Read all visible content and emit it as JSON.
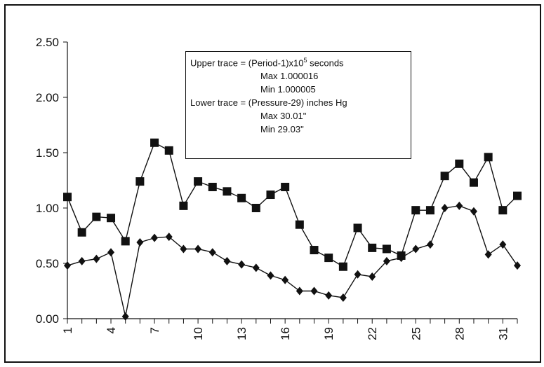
{
  "chart_data": {
    "type": "line",
    "x": [
      "1",
      "2",
      "3",
      "4",
      "5",
      "6",
      "7",
      "8",
      "9",
      "10",
      "11",
      "12",
      "13",
      "14",
      "15",
      "16",
      "17",
      "18",
      "19",
      "20",
      "21",
      "22",
      "23",
      "24",
      "25",
      "26",
      "27",
      "28",
      "29",
      "30",
      "31",
      "32"
    ],
    "x_tick_labels": [
      "1",
      "4",
      "7",
      "10",
      "13",
      "16",
      "19",
      "22",
      "25",
      "28",
      "31"
    ],
    "y_tick_labels": [
      "0.00",
      "0.50",
      "1.00",
      "1.50",
      "2.00",
      "2.50"
    ],
    "ylim": [
      0,
      2.5
    ],
    "grid": false,
    "series": [
      {
        "marker": "square",
        "values": [
          1.1,
          0.78,
          0.92,
          0.91,
          0.7,
          1.24,
          1.59,
          1.52,
          1.02,
          1.24,
          1.19,
          1.15,
          1.09,
          1.0,
          1.12,
          1.19,
          0.85,
          0.62,
          0.55,
          0.47,
          0.82,
          0.64,
          0.63,
          0.57,
          0.98,
          0.98,
          1.29,
          1.4,
          1.23,
          1.46,
          0.98,
          1.11
        ]
      },
      {
        "marker": "diamond",
        "values": [
          0.48,
          0.52,
          0.54,
          0.6,
          0.02,
          0.69,
          0.73,
          0.74,
          0.63,
          0.63,
          0.6,
          0.52,
          0.49,
          0.46,
          0.39,
          0.35,
          0.25,
          0.25,
          0.21,
          0.19,
          0.4,
          0.38,
          0.52,
          0.55,
          0.63,
          0.67,
          1.0,
          1.02,
          0.97,
          0.58,
          0.67,
          0.48
        ]
      }
    ],
    "annotation": {
      "upper_title_prefix": "Upper trace = (Period-1)x10",
      "upper_title_sup": "5",
      "upper_title_suffix": "  seconds",
      "upper_max": "Max  1.000016",
      "upper_min": "Min   1.000005",
      "lower_title": "Lower trace = (Pressure-29)  inches Hg",
      "lower_max": "Max   30.01\"",
      "lower_min": "Min    29.03\""
    },
    "colors": {
      "line": "#111111",
      "marker": "#111111",
      "axis": "#111111"
    }
  }
}
